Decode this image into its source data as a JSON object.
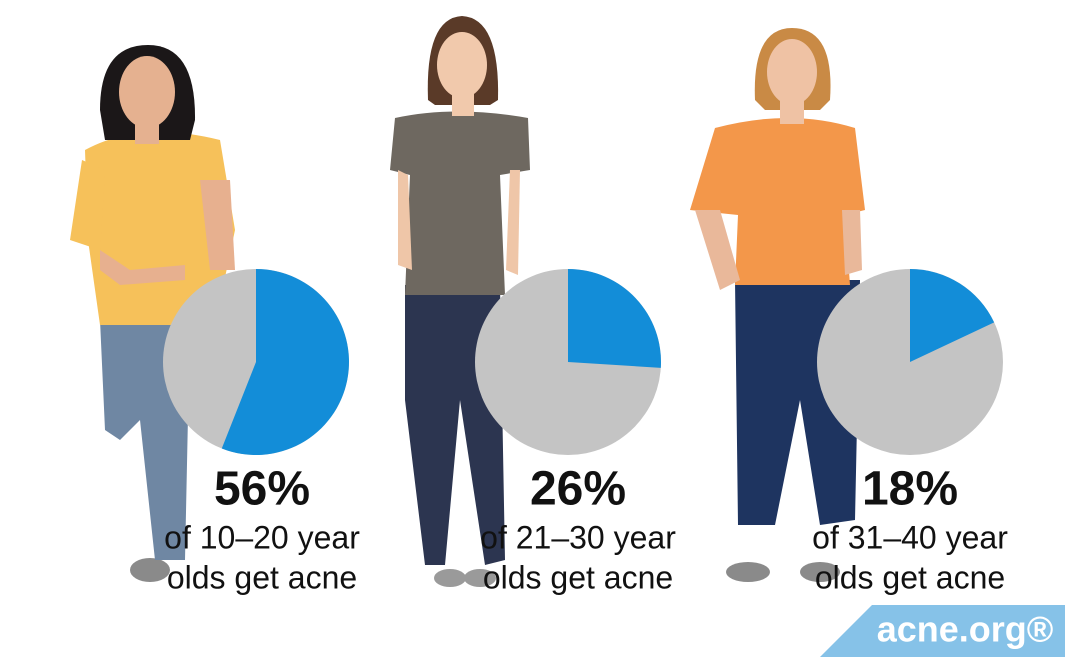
{
  "chart_data": [
    {
      "type": "pie",
      "values": [
        56
      ],
      "value_labels": [
        "56%"
      ],
      "caption": [
        "of 10–20 year",
        "olds get acne"
      ],
      "color": "#138dd8",
      "rest_color": "#c4c4c4"
    },
    {
      "type": "pie",
      "values": [
        26
      ],
      "value_labels": [
        "26%"
      ],
      "caption": [
        "of 21–30 year",
        "olds get acne"
      ],
      "color": "#138dd8",
      "rest_color": "#c4c4c4"
    },
    {
      "type": "pie",
      "values": [
        18
      ],
      "value_labels": [
        "18%"
      ],
      "caption": [
        "of 31–40 year",
        "olds get acne"
      ],
      "color": "#138dd8",
      "rest_color": "#c4c4c4"
    }
  ],
  "logo": "acne.org®"
}
